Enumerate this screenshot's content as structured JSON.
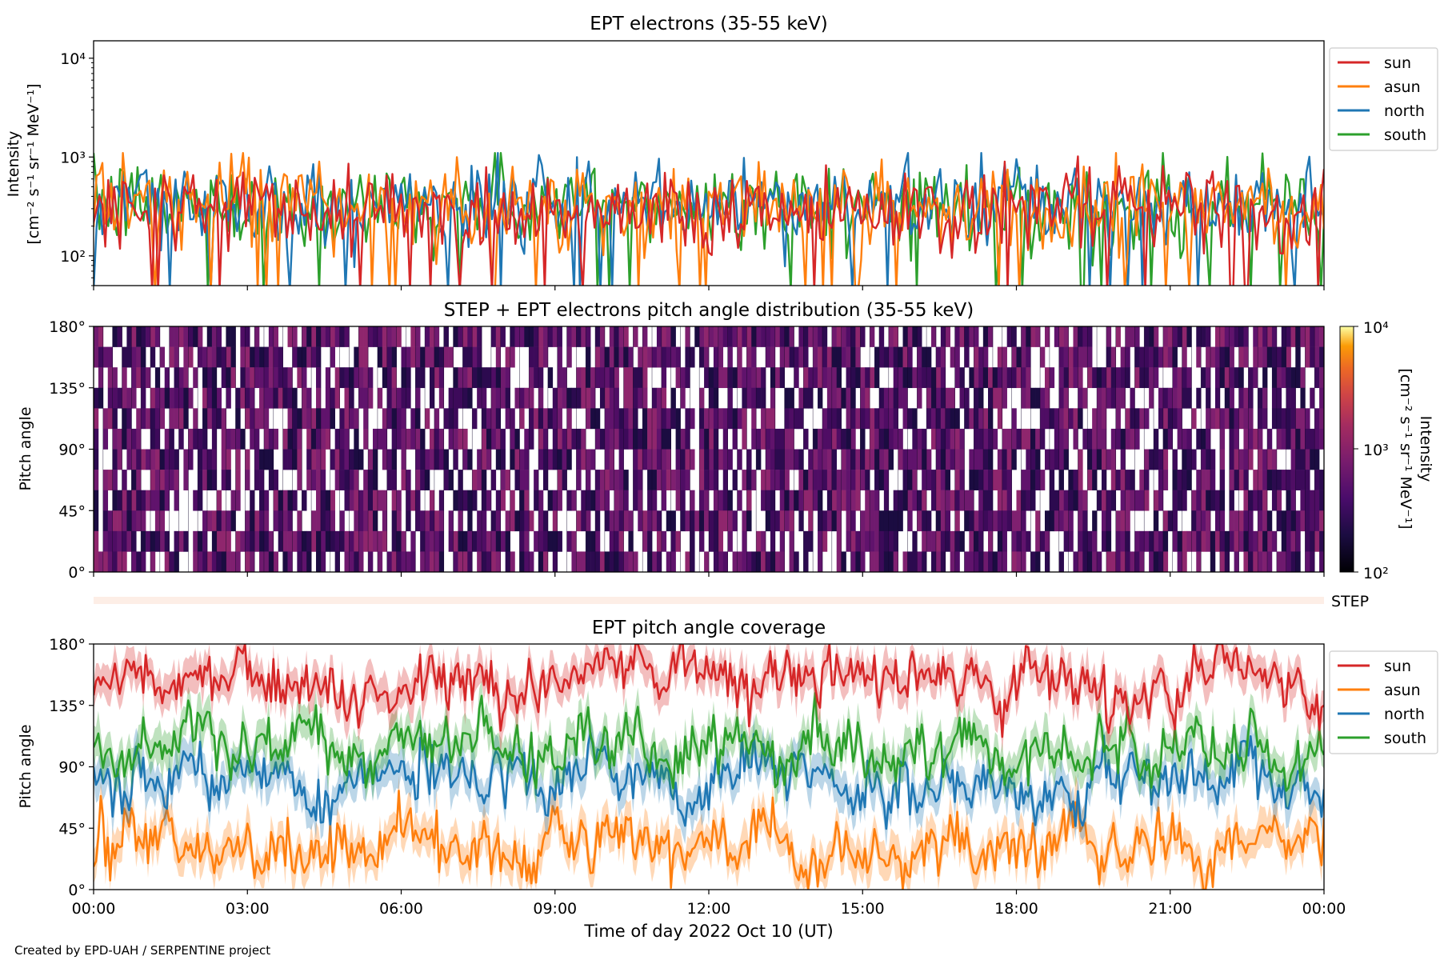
{
  "figure": {
    "footer": "Created by EPD-UAH / SERPENTINE project",
    "xlabel": "Time of day 2022 Oct 10 (UT)",
    "xticks": [
      "00:00",
      "03:00",
      "06:00",
      "09:00",
      "12:00",
      "15:00",
      "18:00",
      "21:00",
      "00:00"
    ]
  },
  "chart_data": [
    {
      "type": "line",
      "title": "EPT electrons (35-55 keV)",
      "ylabel_line1": "Intensity",
      "ylabel_line2": "[cm⁻² s⁻¹ sr⁻¹ MeV⁻¹]",
      "yscale": "log",
      "ylim": [
        50,
        15000
      ],
      "yticks": [
        {
          "value": 100,
          "label": "10²"
        },
        {
          "value": 1000,
          "label": "10³"
        },
        {
          "value": 10000,
          "label": "10⁴"
        }
      ],
      "xlim_hours": [
        0,
        24
      ],
      "legend_position": "outside-right",
      "series": [
        {
          "name": "south",
          "color": "#2ca02c",
          "median": 330
        },
        {
          "name": "north",
          "color": "#1f77b4",
          "median": 330
        },
        {
          "name": "asun",
          "color": "#ff7f0e",
          "median": 330
        },
        {
          "name": "sun",
          "color": "#d62728",
          "median": 300
        }
      ],
      "legend_order": [
        "sun",
        "asun",
        "north",
        "south"
      ],
      "typical_range": [
        100,
        800
      ],
      "max_observed": 1100
    },
    {
      "type": "heatmap",
      "title": "STEP + EPT electrons pitch angle distribution (35-55 keV)",
      "ylabel": "Pitch angle",
      "ylim": [
        0,
        180
      ],
      "yticks": [
        "0°",
        "45°",
        "90°",
        "135°",
        "180°"
      ],
      "colorbar": {
        "label_line1": "Intensity",
        "label_line2": "[cm⁻² s⁻¹ sr⁻¹ MeV⁻¹]",
        "scale": "log",
        "range": [
          100,
          10000
        ],
        "ticks": [
          "10²",
          "10³",
          "10⁴"
        ],
        "colormap": "inferno"
      },
      "typical_intensity": [
        150,
        600
      ]
    },
    {
      "type": "bar",
      "label": "STEP",
      "color": "#fdeee6"
    },
    {
      "type": "line",
      "title": "EPT pitch angle coverage",
      "ylabel": "Pitch angle",
      "ylim": [
        0,
        180
      ],
      "yticks": [
        "0°",
        "45°",
        "90°",
        "135°",
        "180°"
      ],
      "legend_position": "outside-right",
      "legend_order": [
        "sun",
        "asun",
        "north",
        "south"
      ],
      "series": [
        {
          "name": "sun",
          "color": "#d62728",
          "mean_pitch": 150,
          "band_width": 20
        },
        {
          "name": "asun",
          "color": "#ff7f0e",
          "mean_pitch": 30,
          "band_width": 20
        },
        {
          "name": "north",
          "color": "#1f77b4",
          "mean_pitch": 80,
          "band_width": 20
        },
        {
          "name": "south",
          "color": "#2ca02c",
          "mean_pitch": 105,
          "band_width": 20
        }
      ]
    }
  ]
}
